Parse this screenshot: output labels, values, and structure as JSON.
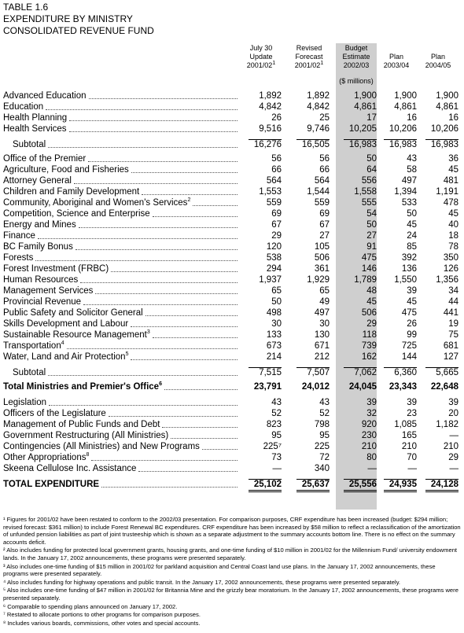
{
  "table_label": "TABLE 1.6",
  "title_line1": "EXPENDITURE BY MINISTRY",
  "title_line2": "CONSOLIDATED REVENUE FUND",
  "columns": [
    {
      "l1": "July 30",
      "l2": "Update",
      "l3": "2001/02",
      "sup": "1"
    },
    {
      "l1": "Revised",
      "l2": "Forecast",
      "l3": "2001/02",
      "sup": "1"
    },
    {
      "l1": "Budget",
      "l2": "Estimate",
      "l3": "2002/03",
      "sup": ""
    },
    {
      "l1": "",
      "l2": "Plan",
      "l3": "2003/04",
      "sup": ""
    },
    {
      "l1": "",
      "l2": "Plan",
      "l3": "2004/05",
      "sup": ""
    }
  ],
  "units": "($ millions)",
  "rows": [
    {
      "label": "Advanced Education",
      "sup": "",
      "vals": [
        "1,892",
        "1,892",
        "1,900",
        "1,900",
        "1,900"
      ]
    },
    {
      "label": "Education",
      "sup": "",
      "vals": [
        "4,842",
        "4,842",
        "4,861",
        "4,861",
        "4,861"
      ]
    },
    {
      "label": "Health Planning",
      "sup": "",
      "vals": [
        "26",
        "25",
        "17",
        "16",
        "16"
      ]
    },
    {
      "label": "Health Services",
      "sup": "",
      "vals": [
        "9,516",
        "9,746",
        "10,205",
        "10,206",
        "10,206"
      ]
    },
    {
      "label": "Subtotal",
      "sup": "",
      "vals": [
        "16,276",
        "16,505",
        "16,983",
        "16,983",
        "16,983"
      ]
    },
    {
      "label": "Office of the Premier",
      "sup": "",
      "vals": [
        "56",
        "56",
        "50",
        "43",
        "36"
      ]
    },
    {
      "label": "Agriculture, Food and Fisheries",
      "sup": "",
      "vals": [
        "66",
        "66",
        "64",
        "58",
        "45"
      ]
    },
    {
      "label": "Attorney General",
      "sup": "",
      "vals": [
        "564",
        "564",
        "556",
        "497",
        "481"
      ]
    },
    {
      "label": "Children and Family Development",
      "sup": "",
      "vals": [
        "1,553",
        "1,544",
        "1,558",
        "1,394",
        "1,191"
      ]
    },
    {
      "label": "Community, Aboriginal and Women's Services",
      "sup": "2",
      "vals": [
        "559",
        "559",
        "555",
        "533",
        "478"
      ]
    },
    {
      "label": "Competition, Science and Enterprise",
      "sup": "",
      "vals": [
        "69",
        "69",
        "54",
        "50",
        "45"
      ]
    },
    {
      "label": "Energy and Mines",
      "sup": "",
      "vals": [
        "67",
        "67",
        "50",
        "45",
        "40"
      ]
    },
    {
      "label": "Finance",
      "sup": "",
      "vals": [
        "29",
        "27",
        "27",
        "24",
        "18"
      ]
    },
    {
      "label": "BC Family Bonus",
      "sup": "",
      "vals": [
        "120",
        "105",
        "91",
        "85",
        "78"
      ]
    },
    {
      "label": "Forests",
      "sup": "",
      "vals": [
        "538",
        "506",
        "475",
        "392",
        "350"
      ]
    },
    {
      "label": "Forest Investment (FRBC)",
      "sup": "",
      "vals": [
        "294",
        "361",
        "146",
        "136",
        "126"
      ]
    },
    {
      "label": "Human Resources",
      "sup": "",
      "vals": [
        "1,937",
        "1,929",
        "1,789",
        "1,550",
        "1,356"
      ]
    },
    {
      "label": "Management Services",
      "sup": "",
      "vals": [
        "65",
        "65",
        "48",
        "39",
        "34"
      ]
    },
    {
      "label": "Provincial Revenue",
      "sup": "",
      "vals": [
        "50",
        "49",
        "45",
        "45",
        "44"
      ]
    },
    {
      "label": "Public Safety and Solicitor General",
      "sup": "",
      "vals": [
        "498",
        "497",
        "506",
        "475",
        "441"
      ]
    },
    {
      "label": "Skills Development and Labour",
      "sup": "",
      "vals": [
        "30",
        "30",
        "29",
        "26",
        "19"
      ]
    },
    {
      "label": "Sustainable Resource Management",
      "sup": "3",
      "vals": [
        "133",
        "130",
        "118",
        "99",
        "75"
      ]
    },
    {
      "label": "Transportation",
      "sup": "4",
      "vals": [
        "673",
        "671",
        "739",
        "725",
        "681"
      ]
    },
    {
      "label": "Water, Land and Air Protection",
      "sup": "5",
      "vals": [
        "214",
        "212",
        "162",
        "144",
        "127"
      ]
    },
    {
      "label": "Subtotal",
      "sup": "",
      "vals": [
        "7,515",
        "7,507",
        "7,062",
        "6,360",
        "5,665"
      ]
    },
    {
      "label": "Total Ministries and Premier's Office",
      "sup": "6",
      "vals": [
        "23,791",
        "24,012",
        "24,045",
        "23,343",
        "22,648"
      ]
    },
    {
      "label": "Legislation",
      "sup": "",
      "vals": [
        "43",
        "43",
        "39",
        "39",
        "39"
      ]
    },
    {
      "label": "Officers of the Legislature",
      "sup": "",
      "vals": [
        "52",
        "52",
        "32",
        "23",
        "20"
      ]
    },
    {
      "label": "Management of Public Funds and Debt",
      "sup": "",
      "vals": [
        "823",
        "798",
        "920",
        "1,085",
        "1,182"
      ]
    },
    {
      "label": "Government Restructuring (All Ministries)",
      "sup": "",
      "vals": [
        "95",
        "95",
        "230",
        "165",
        "—"
      ]
    },
    {
      "label": "Contingencies (All Ministries) and New Programs",
      "sup": "",
      "vals": [
        "225⁷",
        "225",
        "210",
        "210",
        "210"
      ]
    },
    {
      "label": "Other Appropriations",
      "sup": "8",
      "vals": [
        "73",
        "72",
        "80",
        "70",
        "29"
      ]
    },
    {
      "label": "Skeena Cellulose Inc. Assistance",
      "sup": "",
      "vals": [
        "—",
        "340",
        "—",
        "—",
        "—"
      ]
    },
    {
      "label": "TOTAL EXPENDITURE",
      "sup": "",
      "vals": [
        "25,102",
        "25,637",
        "25,556",
        "24,935",
        "24,128"
      ]
    }
  ],
  "footnotes": [
    "¹ Figures for 2001/02 have been restated to conform to the 2002/03 presentation. For comparison purposes, CRF expenditure has been increased (budget: $294 million; revised forecast: $361 million) to include Forest Renewal BC expenditures. CRF expenditure has been increased by $58 million to reflect a reclassification of the amortization of unfunded pension liabilities as part of joint trusteeship which is shown as a separate adjustment to the summary accounts bottom line. There is no effect on the summary accounts deficit.",
    "² Also includes funding for protected local government grants, housing grants, and one-time funding of $10 million in 2001/02 for the Millennium Fund/ university endowment lands. In the January 17, 2002 announcements, these programs were presented separately.",
    "³ Also includes one-time funding of $15 million in 2001/02 for parkland acquisition and Central Coast land use plans. In the January 17, 2002 announcements, these programs were presented separately.",
    "⁴ Also includes funding for highway operations and public transit. In the January 17, 2002 announcements, these programs were presented separately.",
    "⁵ Also includes one-time funding of $47 million in 2001/02 for Britannia Mine and the grizzly bear moratorium. In the January 17, 2002 announcements, these programs were presented separately.",
    "⁶ Comparable to spending plans announced on January 17, 2002.",
    "⁷ Restated to allocate portions to other programs for comparison purposes.",
    "⁸ Includes various boards, commissions, other votes and special accounts."
  ]
}
